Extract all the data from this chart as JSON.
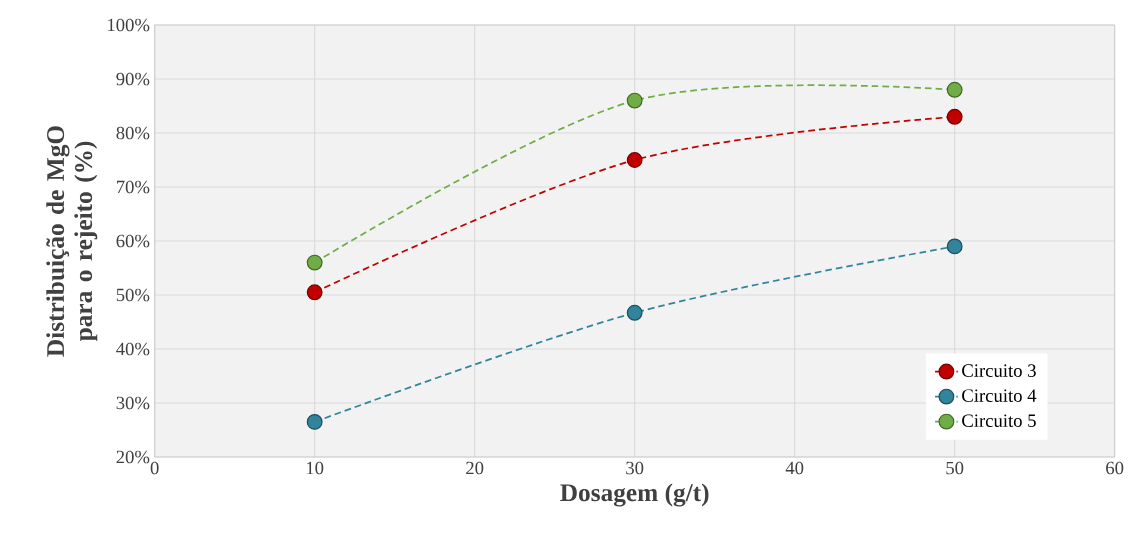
{
  "chart_data": {
    "type": "line",
    "xlabel": "Dosagem (g/t)",
    "ylabel": "Distribuição de MgO para o rejeito (%)",
    "x": [
      10,
      30,
      50
    ],
    "series": [
      {
        "name": "Circuito 3",
        "color": "#c00000",
        "values": [
          50.5,
          75,
          83
        ]
      },
      {
        "name": "Circuito 4",
        "color": "#31849b",
        "values": [
          26.5,
          46.7,
          59
        ]
      },
      {
        "name": "Circuito 5",
        "color": "#70ad47",
        "values": [
          56,
          86,
          88
        ]
      }
    ],
    "xlim": [
      0,
      60
    ],
    "xticks": [
      0,
      10,
      20,
      30,
      40,
      50,
      60
    ],
    "ylim": [
      20,
      100
    ],
    "yticks": [
      {
        "value": 20,
        "label": "20%"
      },
      {
        "value": 30,
        "label": "30%"
      },
      {
        "value": 40,
        "label": "40%"
      },
      {
        "value": 50,
        "label": "50%"
      },
      {
        "value": 60,
        "label": "60%"
      },
      {
        "value": 70,
        "label": "70%"
      },
      {
        "value": 80,
        "label": "80%"
      },
      {
        "value": 90,
        "label": "90%"
      },
      {
        "value": 100,
        "label": "100%"
      }
    ],
    "grid": true,
    "legend": "bottom right",
    "marker": "circle",
    "line_style": "dashed"
  }
}
